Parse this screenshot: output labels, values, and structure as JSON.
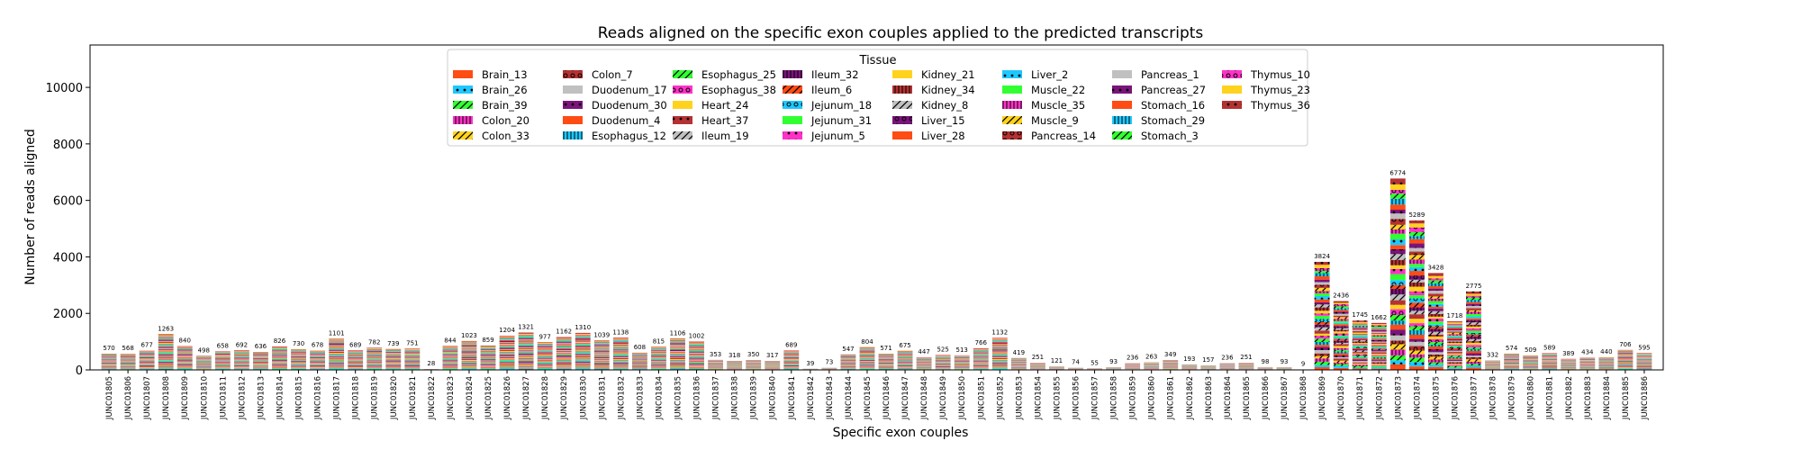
{
  "chart_data": {
    "type": "bar",
    "stacked": true,
    "title": "Reads aligned on the specific exon couples applied to the predicted transcripts",
    "xlabel": "Specific exon couples",
    "ylabel": "Number of reads aligned",
    "ylim": [
      0,
      11500
    ],
    "yticks": [
      0,
      2000,
      4000,
      6000,
      8000,
      10000
    ],
    "grid": false,
    "legend": {
      "title": "Tissue",
      "placement": "top-center",
      "columns": 8,
      "entries": [
        {
          "label": "Brain_13",
          "color": "#ff4b14",
          "hatch": "none"
        },
        {
          "label": "Brain_26",
          "color": "#1ec8ff",
          "hatch": "dot"
        },
        {
          "label": "Brain_39",
          "color": "#32ff32",
          "hatch": "slash"
        },
        {
          "label": "Colon_20",
          "color": "#ff32c8",
          "hatch": "bar"
        },
        {
          "label": "Colon_33",
          "color": "#ffd21e",
          "hatch": "slash"
        },
        {
          "label": "Colon_7",
          "color": "#b43232",
          "hatch": "circle"
        },
        {
          "label": "Duodenum_17",
          "color": "#c0c0c0",
          "hatch": "none"
        },
        {
          "label": "Duodenum_30",
          "color": "#7a147a",
          "hatch": "dot"
        },
        {
          "label": "Duodenum_4",
          "color": "#ff4b14",
          "hatch": "none"
        },
        {
          "label": "Esophagus_12",
          "color": "#1ec8ff",
          "hatch": "bar"
        },
        {
          "label": "Esophagus_25",
          "color": "#32ff32",
          "hatch": "slash"
        },
        {
          "label": "Esophagus_38",
          "color": "#ff32c8",
          "hatch": "circle"
        },
        {
          "label": "Heart_24",
          "color": "#ffd21e",
          "hatch": "none"
        },
        {
          "label": "Heart_37",
          "color": "#b43232",
          "hatch": "dot"
        },
        {
          "label": "Ileum_19",
          "color": "#c0c0c0",
          "hatch": "slash"
        },
        {
          "label": "Ileum_32",
          "color": "#7a147a",
          "hatch": "bar"
        },
        {
          "label": "Ileum_6",
          "color": "#ff4b14",
          "hatch": "slash"
        },
        {
          "label": "Jejunum_18",
          "color": "#1ec8ff",
          "hatch": "circle"
        },
        {
          "label": "Jejunum_31",
          "color": "#32ff32",
          "hatch": "none"
        },
        {
          "label": "Jejunum_5",
          "color": "#ff32c8",
          "hatch": "dot"
        },
        {
          "label": "Kidney_21",
          "color": "#ffd21e",
          "hatch": "none"
        },
        {
          "label": "Kidney_34",
          "color": "#b43232",
          "hatch": "bar"
        },
        {
          "label": "Kidney_8",
          "color": "#c0c0c0",
          "hatch": "slash"
        },
        {
          "label": "Liver_15",
          "color": "#7a147a",
          "hatch": "circle"
        },
        {
          "label": "Liver_28",
          "color": "#ff4b14",
          "hatch": "none"
        },
        {
          "label": "Liver_2",
          "color": "#1ec8ff",
          "hatch": "dot"
        },
        {
          "label": "Muscle_22",
          "color": "#32ff32",
          "hatch": "none"
        },
        {
          "label": "Muscle_35",
          "color": "#ff32c8",
          "hatch": "bar"
        },
        {
          "label": "Muscle_9",
          "color": "#ffd21e",
          "hatch": "slash"
        },
        {
          "label": "Pancreas_14",
          "color": "#b43232",
          "hatch": "circle"
        },
        {
          "label": "Pancreas_1",
          "color": "#c0c0c0",
          "hatch": "none"
        },
        {
          "label": "Pancreas_27",
          "color": "#7a147a",
          "hatch": "dot"
        },
        {
          "label": "Stomach_16",
          "color": "#ff4b14",
          "hatch": "none"
        },
        {
          "label": "Stomach_29",
          "color": "#1ec8ff",
          "hatch": "bar"
        },
        {
          "label": "Stomach_3",
          "color": "#32ff32",
          "hatch": "slash"
        },
        {
          "label": "Thymus_10",
          "color": "#ff32c8",
          "hatch": "circle"
        },
        {
          "label": "Thymus_23",
          "color": "#ffd21e",
          "hatch": "none"
        },
        {
          "label": "Thymus_36",
          "color": "#b43232",
          "hatch": "dot"
        }
      ]
    },
    "categories": [
      "JUNC01805",
      "JUNC01806",
      "JUNC01807",
      "JUNC01808",
      "JUNC01809",
      "JUNC01810",
      "JUNC01811",
      "JUNC01812",
      "JUNC01813",
      "JUNC01814",
      "JUNC01815",
      "JUNC01816",
      "JUNC01817",
      "JUNC01818",
      "JUNC01819",
      "JUNC01820",
      "JUNC01821",
      "JUNC01822",
      "JUNC01823",
      "JUNC01824",
      "JUNC01825",
      "JUNC01826",
      "JUNC01827",
      "JUNC01828",
      "JUNC01829",
      "JUNC01830",
      "JUNC01831",
      "JUNC01832",
      "JUNC01833",
      "JUNC01834",
      "JUNC01835",
      "JUNC01836",
      "JUNC01837",
      "JUNC01838",
      "JUNC01839",
      "JUNC01840",
      "JUNC01841",
      "JUNC01842",
      "JUNC01843",
      "JUNC01844",
      "JUNC01845",
      "JUNC01846",
      "JUNC01847",
      "JUNC01848",
      "JUNC01849",
      "JUNC01850",
      "JUNC01851",
      "JUNC01852",
      "JUNC01853",
      "JUNC01854",
      "JUNC01855",
      "JUNC01856",
      "JUNC01857",
      "JUNC01858",
      "JUNC01859",
      "JUNC01860",
      "JUNC01861",
      "JUNC01862",
      "JUNC01863",
      "JUNC01864",
      "JUNC01865",
      "JUNC01866",
      "JUNC01867",
      "JUNC01868",
      "JUNC01869",
      "JUNC01870",
      "JUNC01871",
      "JUNC01872",
      "JUNC01873",
      "JUNC01874",
      "JUNC01875",
      "JUNC01876",
      "JUNC01877",
      "JUNC01878",
      "JUNC01879",
      "JUNC01880",
      "JUNC01881",
      "JUNC01882",
      "JUNC01883",
      "JUNC01884",
      "JUNC01885",
      "JUNC01886"
    ],
    "totals": [
      570,
      568,
      677,
      1263,
      840,
      498,
      658,
      692,
      636,
      826,
      730,
      678,
      1101,
      689,
      782,
      739,
      751,
      28,
      844,
      1023,
      859,
      1204,
      1321,
      977,
      1162,
      1310,
      1039,
      1138,
      608,
      815,
      1106,
      1002,
      353,
      318,
      350,
      317,
      689,
      39,
      73,
      547,
      804,
      571,
      675,
      447,
      525,
      513,
      766,
      1132,
      419,
      251,
      121,
      74,
      55,
      93,
      236,
      263,
      349,
      193,
      157,
      236,
      251,
      98,
      93,
      9,
      3824,
      2436,
      1745,
      1662,
      6774,
      5289,
      3428,
      1718,
      2775,
      332,
      574,
      509,
      589,
      389,
      434,
      440,
      706,
      595
    ]
  }
}
